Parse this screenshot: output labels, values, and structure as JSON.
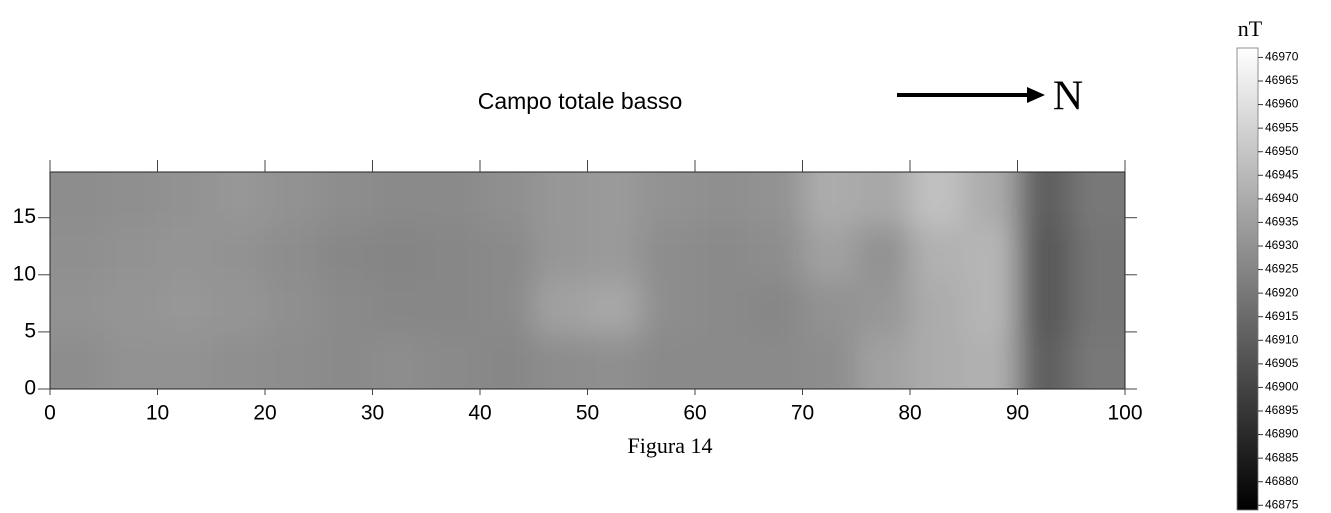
{
  "chart_data": {
    "type": "heatmap",
    "title": "Campo totale basso",
    "north_label": "N",
    "caption": "Figura 14",
    "colorbar_label": "nT",
    "xlim": [
      0,
      100
    ],
    "xticks": [
      0,
      10,
      20,
      30,
      40,
      50,
      60,
      70,
      80,
      90,
      100
    ],
    "ylim": [
      0,
      19
    ],
    "yticks": [
      0,
      5,
      10,
      15
    ],
    "zlim": [
      46874,
      46972
    ],
    "zticks": [
      46875,
      46880,
      46885,
      46890,
      46895,
      46900,
      46905,
      46910,
      46915,
      46920,
      46925,
      46930,
      46935,
      46940,
      46945,
      46950,
      46955,
      46960,
      46965,
      46970
    ],
    "z": [
      [
        46928,
        46930,
        46930,
        46929,
        46928,
        46927,
        46928,
        46927,
        46926,
        46928,
        46929,
        46927,
        46927,
        46927,
        46928,
        46936,
        46940,
        46942,
        46910,
        46920
      ],
      [
        46930,
        46931,
        46932,
        46931,
        46929,
        46927,
        46926,
        46926,
        46927,
        46936,
        46938,
        46928,
        46927,
        46926,
        46930,
        46932,
        46940,
        46944,
        46908,
        46919
      ],
      [
        46929,
        46930,
        46931,
        46930,
        46928,
        46926,
        46925,
        46926,
        46927,
        46932,
        46933,
        46928,
        46927,
        46928,
        46936,
        46930,
        46942,
        46944,
        46908,
        46919
      ],
      [
        46928,
        46929,
        46930,
        46932,
        46930,
        46928,
        46927,
        46927,
        46929,
        46932,
        46933,
        46930,
        46929,
        46930,
        46940,
        46938,
        46948,
        46940,
        46910,
        46920
      ]
    ]
  }
}
